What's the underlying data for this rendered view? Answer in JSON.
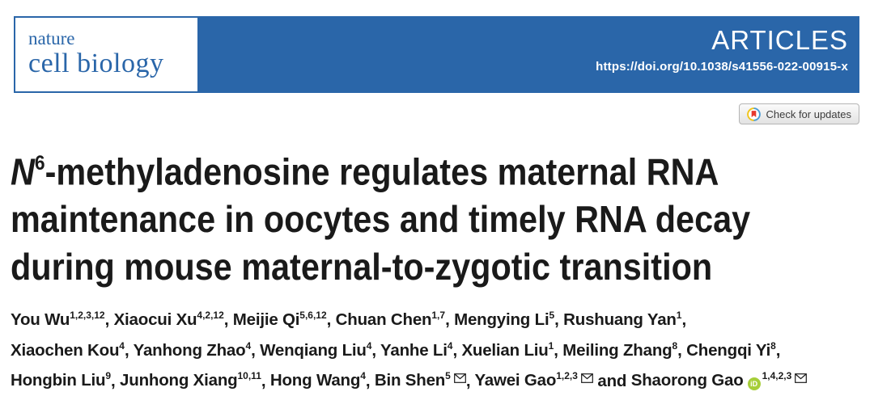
{
  "journal": {
    "name_line1": "nature",
    "name_line2": "cell biology",
    "section_label": "ARTICLES",
    "doi": "https://doi.org/10.1038/s41556-022-00915-x"
  },
  "colors": {
    "brand_blue": "#2a66a9",
    "title_text": "#1a1a1a",
    "orcid_green": "#a6ce39",
    "crossmark_yellow": "#f0c419",
    "crossmark_blue": "#4a9bd5",
    "crossmark_red": "#e6392f"
  },
  "badge": {
    "label": "Check for updates"
  },
  "title": {
    "n_italic": "N",
    "n_sup": "6",
    "line1_rest": "-methyladenosine regulates maternal RNA",
    "line2": "maintenance in oocytes and timely RNA decay",
    "line3": "during mouse maternal-to-zygotic transition"
  },
  "orcid_label": "iD",
  "author_lines": [
    [
      {
        "name": "You Wu",
        "sup": "1,2,3,12",
        "sep": ", "
      },
      {
        "name": "Xiaocui Xu",
        "sup": "4,2,12",
        "sep": ", "
      },
      {
        "name": "Meijie Qi",
        "sup": "5,6,12",
        "sep": ", "
      },
      {
        "name": "Chuan Chen",
        "sup": "1,7",
        "sep": ", "
      },
      {
        "name": "Mengying Li",
        "sup": "5",
        "sep": ", "
      },
      {
        "name": "Rushuang Yan",
        "sup": "1",
        "sep": ","
      }
    ],
    [
      {
        "name": "Xiaochen Kou",
        "sup": "4",
        "sep": ", "
      },
      {
        "name": "Yanhong Zhao",
        "sup": "4",
        "sep": ", "
      },
      {
        "name": "Wenqiang Liu",
        "sup": "4",
        "sep": ", "
      },
      {
        "name": "Yanhe Li",
        "sup": "4",
        "sep": ", "
      },
      {
        "name": "Xuelian Liu",
        "sup": "1",
        "sep": ", "
      },
      {
        "name": "Meiling Zhang",
        "sup": "8",
        "sep": ", "
      },
      {
        "name": "Chengqi Yi",
        "sup": "8",
        "sep": ","
      }
    ],
    [
      {
        "name": "Hongbin Liu",
        "sup": "9",
        "sep": ", "
      },
      {
        "name": "Junhong Xiang",
        "sup": "10,11",
        "sep": ", "
      },
      {
        "name": "Hong Wang",
        "sup": "4",
        "sep": ", "
      },
      {
        "name": "Bin Shen",
        "sup": "5",
        "envelope": true,
        "sep": ", "
      },
      {
        "name": "Yawei Gao",
        "sup": "1,2,3",
        "envelope": true,
        "sep": " and "
      },
      {
        "name": "Shaorong Gao",
        "orcid": true,
        "sup": "1,4,2,3",
        "envelope": true,
        "sep": ""
      }
    ]
  ]
}
